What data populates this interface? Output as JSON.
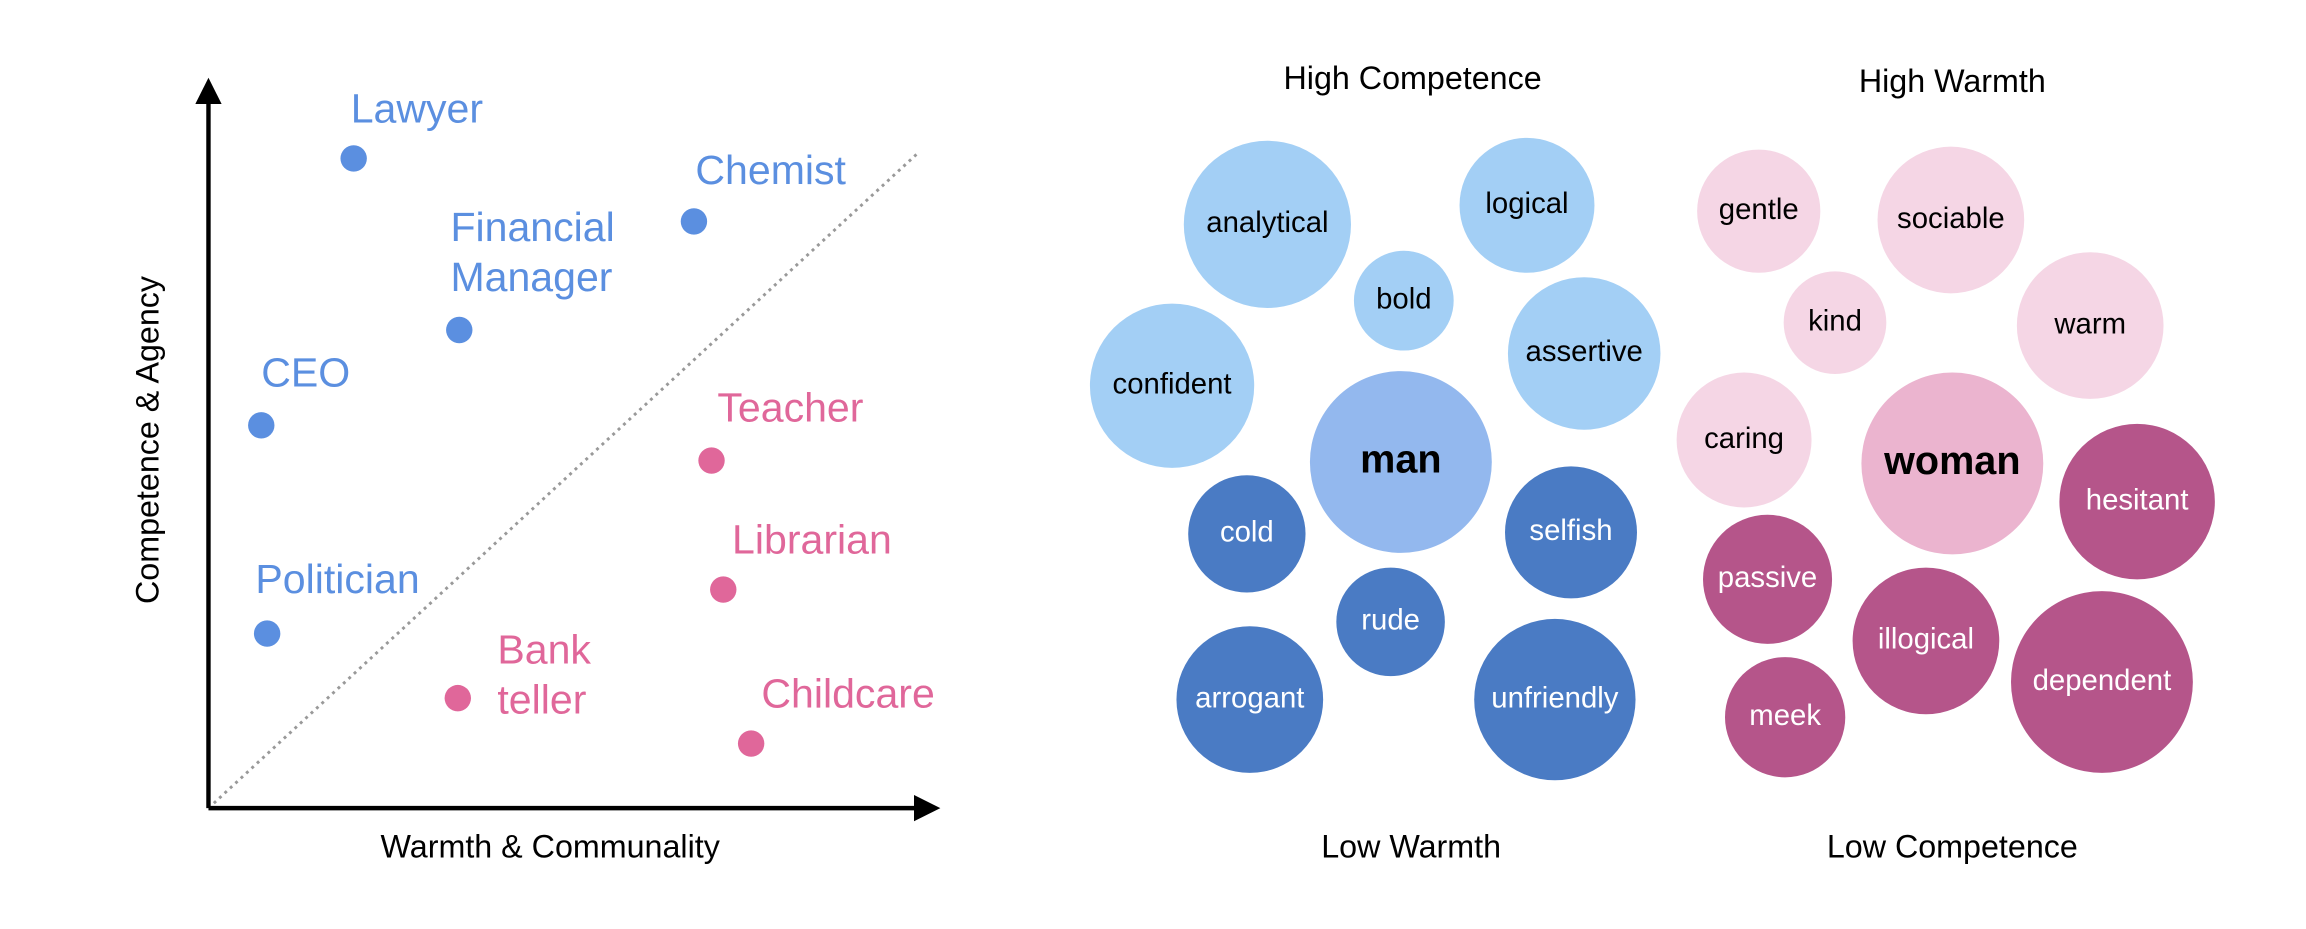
{
  "scatter": {
    "x_label": "Warmth & Communality",
    "y_label": "Competence & Agency",
    "points": [
      {
        "lines": [
          "Lawyer"
        ],
        "group": "male"
      },
      {
        "lines": [
          "Financial",
          "Manager"
        ],
        "group": "male"
      },
      {
        "lines": [
          "Chemist"
        ],
        "group": "male"
      },
      {
        "lines": [
          "CEO"
        ],
        "group": "male"
      },
      {
        "lines": [
          "Politician"
        ],
        "group": "male"
      },
      {
        "lines": [
          "Teacher"
        ],
        "group": "female"
      },
      {
        "lines": [
          "Librarian"
        ],
        "group": "female"
      },
      {
        "lines": [
          "Bank",
          "teller"
        ],
        "group": "female"
      },
      {
        "lines": [
          "Childcare"
        ],
        "group": "female"
      }
    ]
  },
  "clusters": [
    {
      "top_label": "High Competence",
      "bottom_label": "Low Warmth",
      "center": "man",
      "high_words": [
        "analytical",
        "logical",
        "bold",
        "confident",
        "assertive"
      ],
      "low_words": [
        "cold",
        "selfish",
        "rude",
        "arrogant",
        "unfriendly"
      ]
    },
    {
      "top_label": "High Warmth",
      "bottom_label": "Low Competence",
      "center": "woman",
      "high_words": [
        "gentle",
        "sociable",
        "kind",
        "warm",
        "caring"
      ],
      "low_words": [
        "hesitant",
        "passive",
        "illogical",
        "dependent",
        "meek"
      ]
    }
  ]
}
